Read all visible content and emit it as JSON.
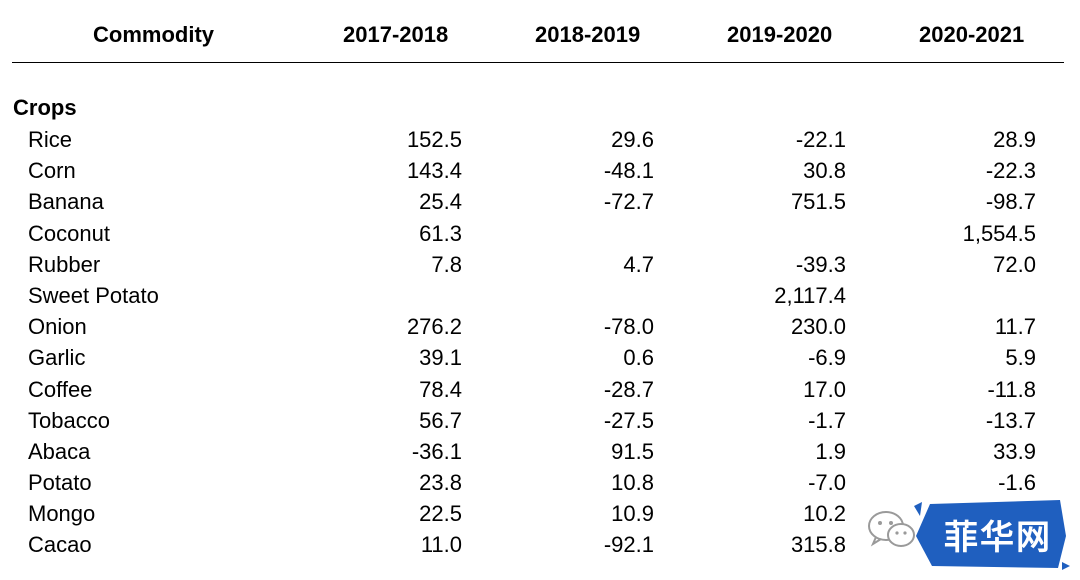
{
  "header": {
    "commodity": "Commodity",
    "years": [
      "2017-2018",
      "2018-2019",
      "2019-2020",
      "2020-2021"
    ]
  },
  "section": {
    "title": "Crops"
  },
  "rows": [
    {
      "name": "Rice",
      "values": [
        "152.5",
        "29.6",
        "-22.1",
        "28.9"
      ]
    },
    {
      "name": "Corn",
      "values": [
        "143.4",
        "-48.1",
        "30.8",
        "-22.3"
      ]
    },
    {
      "name": "Banana",
      "values": [
        "25.4",
        "-72.7",
        "751.5",
        "-98.7"
      ]
    },
    {
      "name": "Coconut",
      "values": [
        "61.3",
        "",
        "",
        "1,554.5"
      ]
    },
    {
      "name": "Rubber",
      "values": [
        "7.8",
        "4.7",
        "-39.3",
        "72.0"
      ]
    },
    {
      "name": "Sweet Potato",
      "values": [
        "",
        "",
        "2,117.4",
        ""
      ]
    },
    {
      "name": "Onion",
      "values": [
        "276.2",
        "-78.0",
        "230.0",
        "11.7"
      ]
    },
    {
      "name": "Garlic",
      "values": [
        "39.1",
        "0.6",
        "-6.9",
        "5.9"
      ]
    },
    {
      "name": "Coffee",
      "values": [
        "78.4",
        "-28.7",
        "17.0",
        "-11.8"
      ]
    },
    {
      "name": "Tobacco",
      "values": [
        "56.7",
        "-27.5",
        "-1.7",
        "-13.7"
      ]
    },
    {
      "name": "Abaca",
      "values": [
        "-36.1",
        "91.5",
        "1.9",
        "33.9"
      ]
    },
    {
      "name": "Potato",
      "values": [
        "23.8",
        "10.8",
        "-7.0",
        "-1.6"
      ]
    },
    {
      "name": "Mongo",
      "values": [
        "22.5",
        "10.9",
        "10.2",
        ""
      ]
    },
    {
      "name": "Cacao",
      "values": [
        "11.0",
        "-92.1",
        "315.8",
        ""
      ]
    }
  ],
  "watermark": {
    "text": "菲华网",
    "icon": "wechat-icon",
    "badge_color": "#1f5fbf"
  }
}
